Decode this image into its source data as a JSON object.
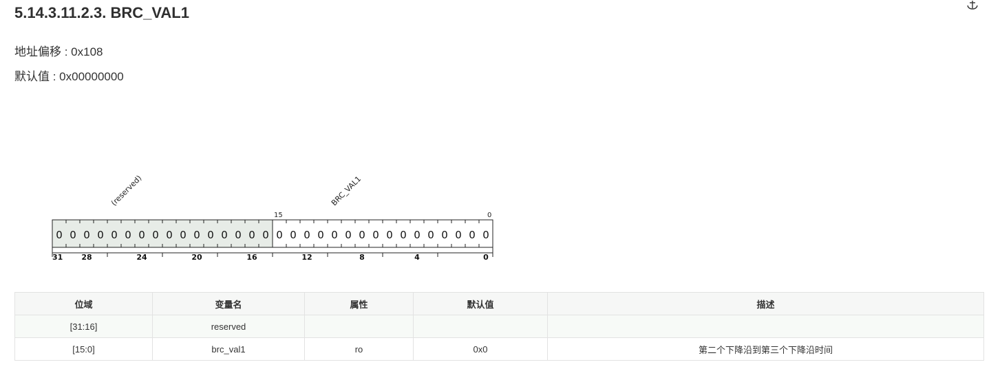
{
  "title": "5.14.3.11.2.3. BRC_VAL1",
  "icons": {
    "anchor": "anchor-icon"
  },
  "meta": {
    "offset": "地址偏移 : 0x108",
    "default": "默认值 : 0x00000000"
  },
  "register": {
    "fields": [
      {
        "name": "(reserved)",
        "msb": 31,
        "lsb": 16,
        "reserved": true
      },
      {
        "name": "BRC_VAL1",
        "msb": 15,
        "lsb": 0,
        "reserved": false
      }
    ],
    "bits": [
      "0",
      "0",
      "0",
      "0",
      "0",
      "0",
      "0",
      "0",
      "0",
      "0",
      "0",
      "0",
      "0",
      "0",
      "0",
      "0",
      "0",
      "0",
      "0",
      "0",
      "0",
      "0",
      "0",
      "0",
      "0",
      "0",
      "0",
      "0",
      "0",
      "0",
      "0",
      "0"
    ],
    "top_labels": [
      "15",
      "0"
    ],
    "bottom_labels": [
      "31",
      "28",
      "24",
      "20",
      "16",
      "12",
      "8",
      "4",
      "0"
    ],
    "reserved_fill": "#e7ece7"
  },
  "table": {
    "headers": [
      "位域",
      "变量名",
      "属性",
      "默认值",
      "描述"
    ],
    "rows": [
      [
        "[31:16]",
        "reserved",
        "",
        "",
        ""
      ],
      [
        "[15:0]",
        "brc_val1",
        "ro",
        "0x0",
        "第二个下降沿到第三个下降沿时间"
      ]
    ]
  }
}
